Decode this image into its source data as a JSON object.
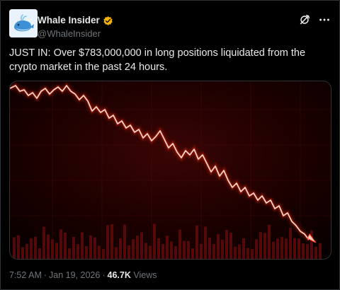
{
  "author": {
    "display_name": "Whale Insider",
    "handle": "@WhaleInsider",
    "avatar_icon": "whale-logo-icon",
    "verified_icon": "verified-badge-icon",
    "verified_color": "#f4b400"
  },
  "header_actions": [
    {
      "icon": "grok-slash-icon"
    },
    {
      "icon": "more-dots-icon"
    }
  ],
  "tweet": {
    "text": "JUST IN: Over $783,000,000 in long positions liquidated from the crypto market in the past 24 hours."
  },
  "media": {
    "description_icon": "downtrend-chart-image",
    "line_color": "#ff3b1f",
    "background_color": "#1a0000"
  },
  "meta": {
    "time": "7:52 AM",
    "separator": "·",
    "date": "Jan 19, 2026",
    "views_count": "46.7K",
    "views_label": "Views"
  },
  "colors": {
    "background": "#000000",
    "text": "#e7e9ea",
    "secondary": "#71767b",
    "border": "#2f3336"
  }
}
